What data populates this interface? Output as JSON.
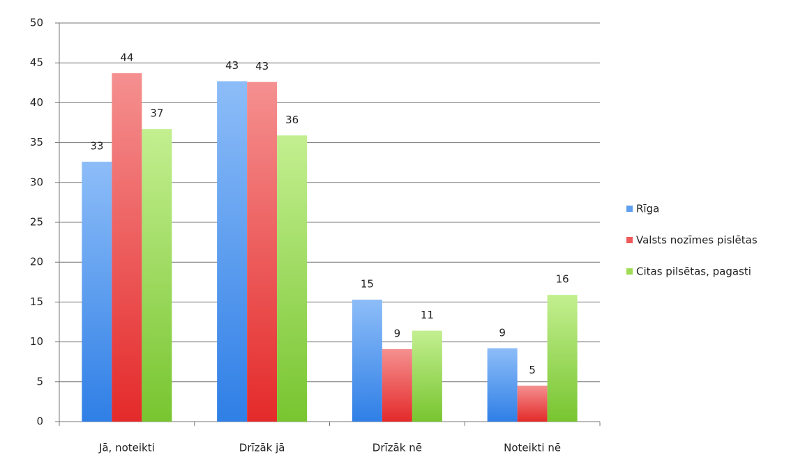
{
  "chart_data": {
    "type": "bar",
    "categories": [
      "Jā, noteikti",
      "Drīzāk jā",
      "Drīzāk nē",
      "Noteikti nē"
    ],
    "series": [
      {
        "name": "Rīga",
        "color": "#5e9ff0",
        "values": [
          32.6,
          42.7,
          15.3,
          9.2
        ],
        "value_labels": [
          "33",
          "43",
          "15",
          "9"
        ]
      },
      {
        "name": "Valsts nozīmes pislētas",
        "color": "#ee5a5a",
        "values": [
          43.7,
          42.6,
          9.1,
          4.5
        ],
        "value_labels": [
          "44",
          "43",
          "9",
          "5"
        ]
      },
      {
        "name": "Citas pilsētas, pagasti",
        "color": "#9fdc55",
        "values": [
          36.7,
          35.9,
          11.4,
          15.9
        ],
        "value_labels": [
          "37",
          "36",
          "11",
          "16"
        ]
      }
    ],
    "ylim": [
      0,
      50
    ],
    "yticks": [
      0,
      5,
      10,
      15,
      20,
      25,
      30,
      35,
      40,
      45,
      50
    ],
    "grid": true,
    "legend": "right"
  }
}
